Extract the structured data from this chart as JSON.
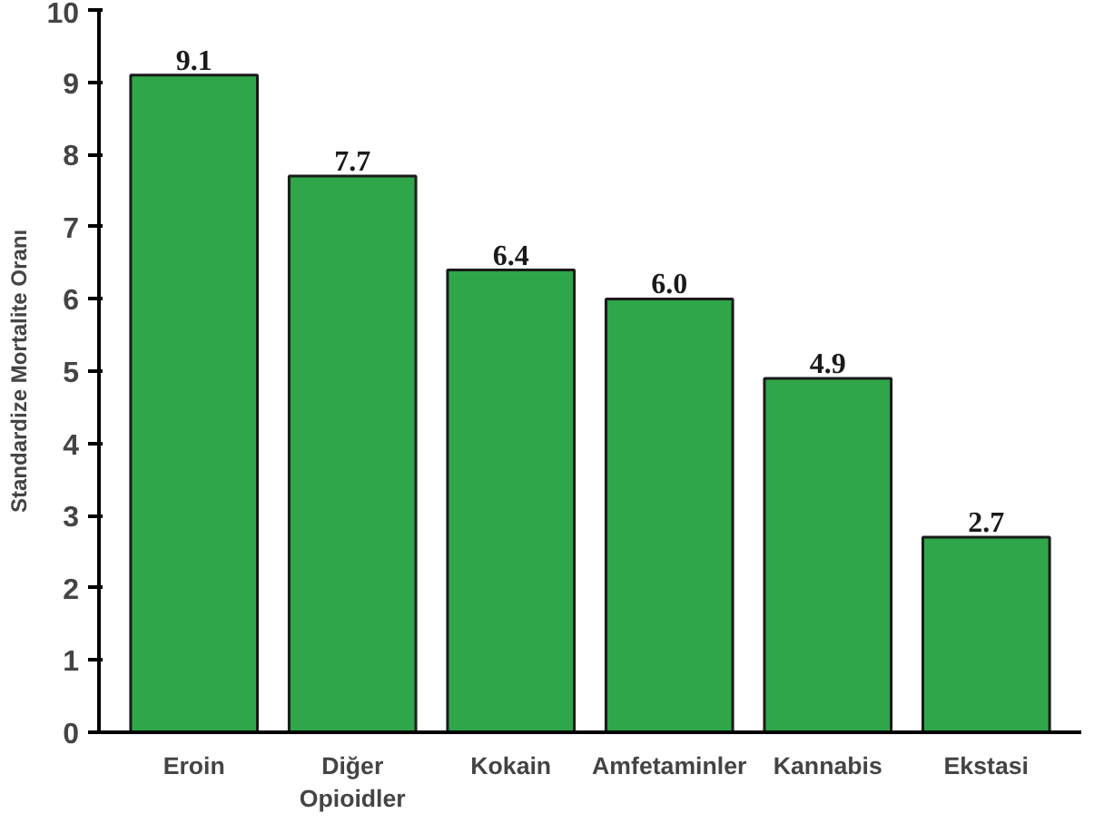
{
  "chart_data": {
    "type": "bar",
    "ylabel": "Standardize Mortalite Oranı",
    "categories": [
      "Eroin",
      "Diğer\nOpioidler",
      "Kokain",
      "Amfetaminler",
      "Kannabis",
      "Ekstasi"
    ],
    "values": [
      9.1,
      7.7,
      6.4,
      6.0,
      4.9,
      2.7
    ],
    "value_labels": [
      "9.1",
      "7.7",
      "6.4",
      "6.0",
      "4.9",
      "2.7"
    ],
    "color": "#2fa64a",
    "ylim": [
      0,
      10
    ],
    "yticks": [
      0,
      1,
      2,
      3,
      4,
      5,
      6,
      7,
      8,
      9,
      10
    ],
    "grid": false
  }
}
